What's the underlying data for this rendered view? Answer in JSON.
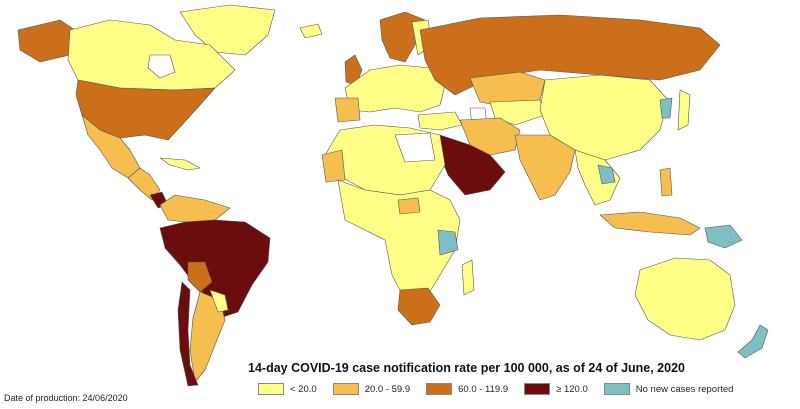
{
  "title": "14-day COVID-19 case notification rate per 100 000, as of 24 of June, 2020",
  "date_of_production": "Date of production: 24/06/2020",
  "legend": [
    {
      "label": "< 20.0",
      "color": "#ffff88"
    },
    {
      "label": "20.0 - 59.9",
      "color": "#f5be4f"
    },
    {
      "label": "60.0 - 119.9",
      "color": "#cc6f1a"
    },
    {
      "label": "≥ 120.0",
      "color": "#6b0d0d"
    },
    {
      "label": "No new cases reported",
      "color": "#7fbfc4"
    }
  ]
}
